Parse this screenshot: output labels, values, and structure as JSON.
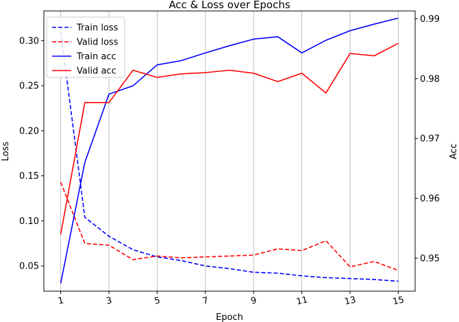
{
  "chart_data": {
    "type": "line",
    "title": "Acc & Loss over Epochs",
    "xlabel": "Epoch",
    "ylabel_left": "Loss",
    "ylabel_right": "Acc",
    "x": [
      1,
      2,
      3,
      4,
      5,
      6,
      7,
      8,
      9,
      10,
      11,
      12,
      13,
      14,
      15
    ],
    "x_ticks": [
      1,
      3,
      5,
      7,
      9,
      11,
      13,
      15
    ],
    "xlim": [
      0.3,
      15.7
    ],
    "ylim_left": [
      0.022,
      0.333
    ],
    "ylim_right": [
      0.9445,
      0.9913
    ],
    "left_ticks": [
      0.05,
      0.1,
      0.15,
      0.2,
      0.25,
      0.3
    ],
    "right_ticks": [
      0.95,
      0.96,
      0.97,
      0.98,
      0.99
    ],
    "grid": "vertical",
    "legend_position": "upper-left",
    "series": [
      {
        "name": "Train loss",
        "axis": "left",
        "color": "#0000ff",
        "style": "dashed",
        "values": [
          0.31,
          0.104,
          0.083,
          0.068,
          0.06,
          0.056,
          0.05,
          0.047,
          0.043,
          0.042,
          0.039,
          0.037,
          0.036,
          0.035,
          0.033
        ]
      },
      {
        "name": "Valid loss",
        "axis": "left",
        "color": "#ff0000",
        "style": "dashed",
        "values": [
          0.143,
          0.075,
          0.073,
          0.057,
          0.061,
          0.059,
          0.06,
          0.061,
          0.062,
          0.069,
          0.067,
          0.078,
          0.049,
          0.055,
          0.045
        ]
      },
      {
        "name": "Train acc",
        "axis": "right",
        "color": "#0000ff",
        "style": "solid",
        "values": [
          0.9458,
          0.966,
          0.9774,
          0.9788,
          0.9823,
          0.983,
          0.9843,
          0.9855,
          0.9866,
          0.987,
          0.9843,
          0.9864,
          0.988,
          0.9891,
          0.9901
        ]
      },
      {
        "name": "Valid acc",
        "axis": "right",
        "color": "#ff0000",
        "style": "solid",
        "values": [
          0.954,
          0.976,
          0.976,
          0.9814,
          0.9802,
          0.9808,
          0.981,
          0.9814,
          0.9809,
          0.9795,
          0.9809,
          0.9776,
          0.9842,
          0.9838,
          0.9859
        ]
      }
    ]
  }
}
